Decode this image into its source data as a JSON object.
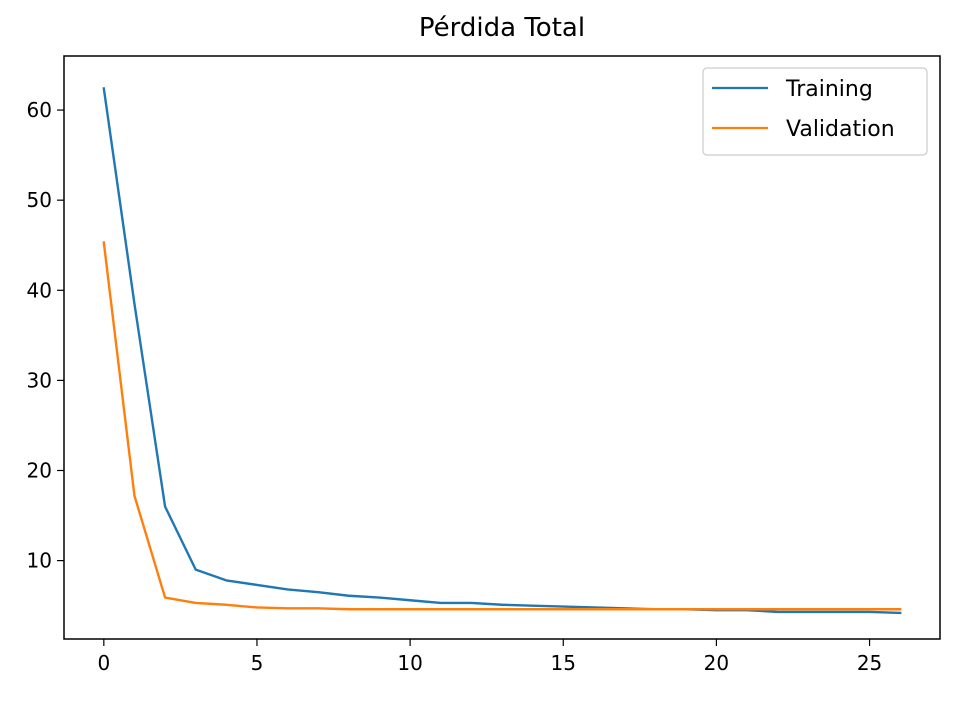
{
  "chart_data": {
    "type": "line",
    "title": "Pérdida Total",
    "xlabel": "",
    "ylabel": "",
    "xlim": [
      -1.3,
      27.3
    ],
    "ylim": [
      1.3,
      66.0
    ],
    "xticks": [
      0,
      5,
      10,
      15,
      20,
      25
    ],
    "yticks": [
      10,
      20,
      30,
      40,
      50,
      60
    ],
    "grid": false,
    "legend_position": "top-right",
    "x": [
      0,
      1,
      2,
      3,
      4,
      5,
      6,
      7,
      8,
      9,
      10,
      11,
      12,
      13,
      14,
      15,
      16,
      17,
      18,
      19,
      20,
      21,
      22,
      23,
      24,
      25,
      26
    ],
    "series": [
      {
        "name": "Training",
        "color": "#1f77b4",
        "values": [
          62.4,
          38.5,
          16.0,
          9.0,
          7.8,
          7.3,
          6.8,
          6.5,
          6.1,
          5.9,
          5.6,
          5.3,
          5.3,
          5.1,
          5.0,
          4.9,
          4.8,
          4.7,
          4.6,
          4.6,
          4.5,
          4.5,
          4.3,
          4.3,
          4.3,
          4.3,
          4.2
        ]
      },
      {
        "name": "Validation",
        "color": "#ff7f0e",
        "values": [
          45.3,
          17.2,
          5.9,
          5.3,
          5.1,
          4.8,
          4.7,
          4.7,
          4.6,
          4.6,
          4.6,
          4.6,
          4.6,
          4.6,
          4.6,
          4.6,
          4.6,
          4.6,
          4.6,
          4.6,
          4.6,
          4.6,
          4.6,
          4.6,
          4.6,
          4.6,
          4.6
        ]
      }
    ]
  }
}
